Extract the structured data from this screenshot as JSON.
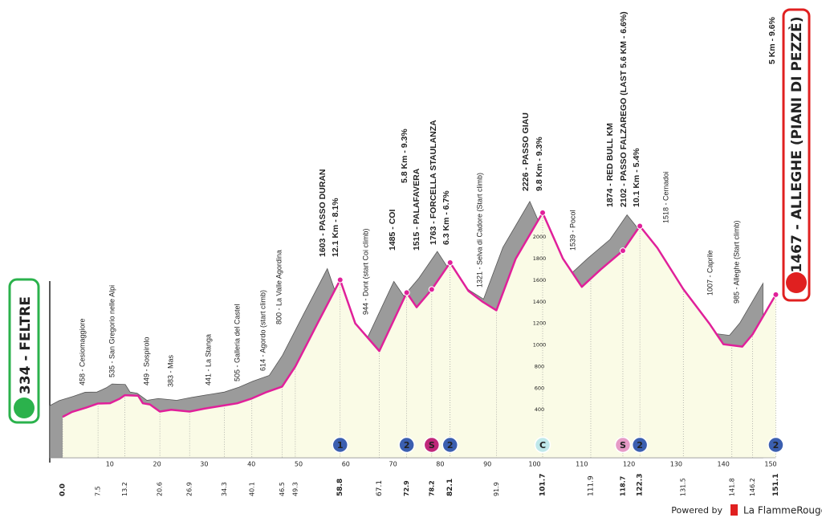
{
  "chart_data": {
    "type": "area",
    "x": [
      0,
      2,
      5,
      7.5,
      10,
      12,
      13.2,
      16,
      17,
      18.5,
      20.6,
      23,
      26.9,
      30,
      34.3,
      37,
      40.1,
      43,
      46.5,
      49.3,
      54,
      58.8,
      62,
      67.1,
      72.9,
      75,
      78.2,
      82.1,
      86,
      89,
      91.9,
      96,
      101.7,
      106,
      110,
      114,
      118.7,
      122.3,
      126,
      131.5,
      137,
      140,
      144,
      146.2,
      151.1
    ],
    "values": [
      334,
      380,
      420,
      458,
      460,
      500,
      535,
      530,
      460,
      449,
      383,
      400,
      383,
      410,
      441,
      460,
      505,
      560,
      614,
      800,
      1200,
      1603,
      1200,
      944,
      1485,
      1350,
      1515,
      1763,
      1500,
      1400,
      1321,
      1800,
      2226,
      1800,
      1539,
      1700,
      1874,
      2102,
      1900,
      1518,
      1200,
      1007,
      985,
      1100,
      1467
    ],
    "color": "#e0209a",
    "fill": "#fafbe6",
    "shade": "#9b9b9b",
    "xlim": [
      0,
      150
    ],
    "ylim": [
      0,
      4000
    ],
    "xticks": [
      10,
      20,
      30,
      40,
      50,
      60,
      70,
      80,
      90,
      100,
      110,
      120,
      130,
      140,
      150
    ],
    "yticks": [
      400,
      600,
      800,
      1000,
      1200,
      1400,
      1600,
      1800,
      2000
    ],
    "km_markers": [
      {
        "value": 0,
        "label": "0.0"
      },
      7.5,
      13.2,
      20.6,
      26.9,
      34.3,
      40.1,
      46.5,
      49.3,
      58.8,
      67.1,
      72.9,
      78.2,
      82.1,
      91.9,
      101.7,
      111.9,
      118.7,
      122.3,
      131.5,
      141.8,
      146.2,
      151.1
    ],
    "climbs": [
      {
        "label": "1",
        "km": 58.8,
        "color": "#3b5fb0"
      },
      {
        "label": "2",
        "km": 72.9,
        "color": "#3b5fb0"
      },
      {
        "label": "S",
        "km": 78.2,
        "color": "#c0287a"
      },
      {
        "label": "2",
        "km": 82.1,
        "color": "#3b5fb0"
      },
      {
        "label": "C",
        "km": 101.7,
        "color": "#bfe8ea"
      },
      {
        "label": "S",
        "km": 118.7,
        "color": "#e69ac6"
      },
      {
        "label": "2",
        "km": 122.3,
        "color": "#3b5fb0"
      },
      {
        "label": "2",
        "km": 151.1,
        "color": "#3b5fb0"
      }
    ],
    "annotations": [
      {
        "text": "458 - Cesiomaggiore"
      },
      {
        "text": "535 - San Gregorio nelle Alpi"
      },
      {
        "text": "449 - Sospirolo"
      },
      {
        "text": "383 - Mas"
      },
      {
        "text": "441 - La Stanga"
      },
      {
        "text": "505 - Galleria del Castel"
      },
      {
        "text": "614 - Agordo (start climb)"
      },
      {
        "text": "800 - La Valle Agordina"
      },
      {
        "text": "1603 - PASSO DURAN",
        "major": true
      },
      {
        "text": "12.1 Km - 8.1%",
        "major": true
      },
      {
        "text": "944 - Dont (start Coi climb)"
      },
      {
        "text": "1485 - COI",
        "major": true
      },
      {
        "text": "5.8 Km - 9.3%",
        "major": true
      },
      {
        "text": "1515 - PALAFAVERA",
        "major": true
      },
      {
        "text": "1763 - FORCELLA STAULANZA",
        "major": true
      },
      {
        "text": "6.3 Km - 6.7%",
        "major": true
      },
      {
        "text": "1321 - Selva di Cadore (Start climb)"
      },
      {
        "text": "2226 - PASSO GIAU",
        "major": true
      },
      {
        "text": "9.8 Km - 9.3%",
        "major": true
      },
      {
        "text": "1539 - Pocol"
      },
      {
        "text": "1874 - RED BULL KM",
        "major": true
      },
      {
        "text": "2102 - PASSO FALZAREGO (LAST 5.6 KM - 6.6%)",
        "major": true
      },
      {
        "text": "10.1 Km - 5.4%",
        "major": true
      },
      {
        "text": "1518 - Cernadoi"
      },
      {
        "text": "1007 - Caprile"
      },
      {
        "text": "985 - Alleghe (Start climb)"
      },
      {
        "text": "5 Km - 9.6%",
        "major": true
      }
    ],
    "start": "334 - FELTRE",
    "finish": "1467 - ALLEGHE (PIANI DI PEZZÈ)"
  },
  "footer": {
    "powered": "Powered by",
    "brand": "La FlammeRouge"
  }
}
